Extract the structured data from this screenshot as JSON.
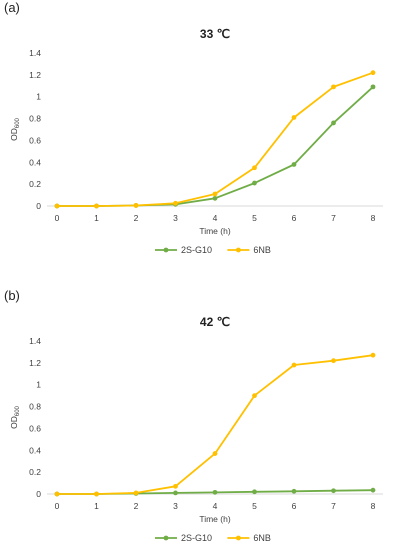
{
  "chart_data": [
    {
      "panel": "(a)",
      "type": "line",
      "title": "33 ℃",
      "xlabel": "Time (h)",
      "ylabel": "OD600",
      "ylabel_main": "OD",
      "ylabel_sub": "600",
      "x": [
        0,
        1,
        2,
        3,
        4,
        5,
        6,
        7,
        8
      ],
      "ylim": [
        0,
        1.4
      ],
      "yticks": [
        0,
        0.2,
        0.4,
        0.6,
        0.8,
        1,
        1.2,
        1.4
      ],
      "ytick_labels": [
        "0",
        "0.2",
        "0.4",
        "0.6",
        "0.8",
        "1",
        "1.2",
        "1.4"
      ],
      "grid": false,
      "legend": "bottom",
      "series": [
        {
          "name": "2S-G10",
          "color": "#70AD47",
          "values": [
            0,
            0,
            0.005,
            0.015,
            0.07,
            0.21,
            0.38,
            0.76,
            1.09
          ]
        },
        {
          "name": "6NB",
          "color": "#FFC000",
          "values": [
            0,
            0,
            0.005,
            0.025,
            0.11,
            0.35,
            0.81,
            1.09,
            1.22
          ]
        }
      ]
    },
    {
      "panel": "(b)",
      "type": "line",
      "title": "42 ℃",
      "xlabel": "Time (h)",
      "ylabel": "OD600",
      "ylabel_main": "OD",
      "ylabel_sub": "600",
      "x": [
        0,
        1,
        2,
        3,
        4,
        5,
        6,
        7,
        8
      ],
      "ylim": [
        0,
        1.4
      ],
      "yticks": [
        0,
        0.2,
        0.4,
        0.6,
        0.8,
        1,
        1.2,
        1.4
      ],
      "ytick_labels": [
        "0",
        "0.2",
        "0.4",
        "0.6",
        "0.8",
        "1",
        "1.2",
        "1.4"
      ],
      "grid": false,
      "legend": "bottom",
      "series": [
        {
          "name": "2S-G10",
          "color": "#70AD47",
          "values": [
            0,
            0,
            0.005,
            0.01,
            0.015,
            0.02,
            0.025,
            0.03,
            0.035
          ]
        },
        {
          "name": "6NB",
          "color": "#FFC000",
          "values": [
            0,
            0,
            0.01,
            0.07,
            0.37,
            0.9,
            1.18,
            1.22,
            1.27
          ]
        }
      ]
    }
  ]
}
